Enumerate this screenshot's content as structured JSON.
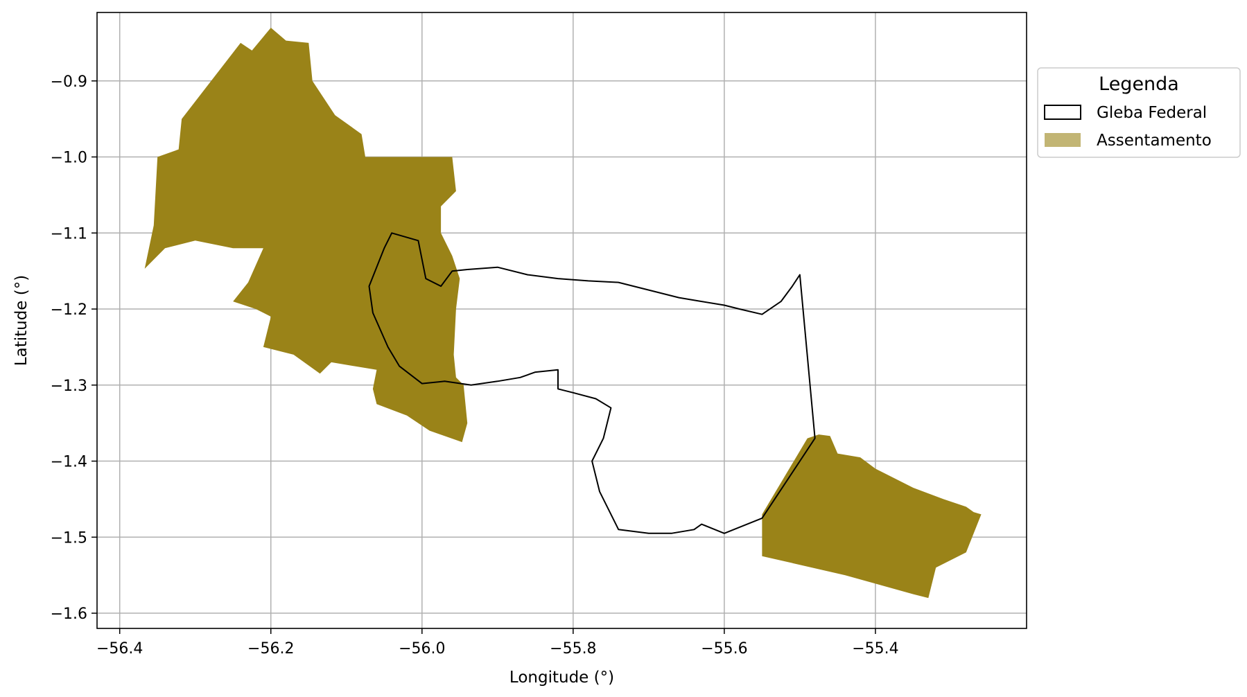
{
  "chart_data": {
    "type": "map",
    "xlabel": "Longitude (°)",
    "ylabel": "Latitude (°)",
    "xlim": [
      -56.43,
      -55.2
    ],
    "ylim": [
      -1.62,
      -0.81
    ],
    "xticks": [
      -56.4,
      -56.2,
      -56.0,
      -55.8,
      -55.6,
      -55.4
    ],
    "xtick_labels": [
      "−56.4",
      "−56.2",
      "−56.0",
      "−55.8",
      "−55.6",
      "−55.4"
    ],
    "yticks": [
      -0.9,
      -1.0,
      -1.1,
      -1.2,
      -1.3,
      -1.4,
      -1.5,
      -1.6
    ],
    "ytick_labels": [
      "−0.9",
      "−1.0",
      "−1.1",
      "−1.2",
      "−1.3",
      "−1.4",
      "−1.5",
      "−1.6"
    ],
    "grid": true,
    "legend": {
      "title": "Legenda",
      "placement": "outside-upper-right",
      "entries": [
        {
          "label": "Gleba Federal",
          "style": "outline",
          "color": "#000000"
        },
        {
          "label": "Assentamento",
          "style": "fill",
          "color": "#9a8318",
          "alpha": 0.6
        }
      ]
    },
    "colors": {
      "assentamento": "#9a8318",
      "gleba": "#000000",
      "grid": "#b0b0b0"
    },
    "layers": [
      {
        "name": "Assentamento",
        "style": "fill",
        "polygons": [
          [
            [
              -56.367,
              -1.147
            ],
            [
              -56.355,
              -1.09
            ],
            [
              -56.35,
              -1.0
            ],
            [
              -56.322,
              -0.99
            ],
            [
              -56.318,
              -0.95
            ],
            [
              -56.24,
              -0.85
            ],
            [
              -56.225,
              -0.86
            ],
            [
              -56.2,
              -0.83
            ],
            [
              -56.18,
              -0.847
            ],
            [
              -56.15,
              -0.85
            ],
            [
              -56.145,
              -0.9
            ],
            [
              -56.115,
              -0.945
            ],
            [
              -56.08,
              -0.97
            ],
            [
              -56.075,
              -1.0
            ],
            [
              -55.96,
              -1.0
            ],
            [
              -55.955,
              -1.045
            ],
            [
              -55.975,
              -1.065
            ],
            [
              -55.975,
              -1.1
            ],
            [
              -55.96,
              -1.13
            ],
            [
              -55.95,
              -1.16
            ],
            [
              -55.955,
              -1.2
            ],
            [
              -55.958,
              -1.26
            ],
            [
              -55.955,
              -1.29
            ],
            [
              -55.945,
              -1.3
            ],
            [
              -55.94,
              -1.35
            ],
            [
              -55.947,
              -1.375
            ],
            [
              -55.99,
              -1.36
            ],
            [
              -56.02,
              -1.34
            ],
            [
              -56.06,
              -1.325
            ],
            [
              -56.065,
              -1.305
            ],
            [
              -56.06,
              -1.28
            ],
            [
              -56.09,
              -1.275
            ],
            [
              -56.12,
              -1.27
            ],
            [
              -56.135,
              -1.285
            ],
            [
              -56.17,
              -1.26
            ],
            [
              -56.21,
              -1.25
            ],
            [
              -56.2,
              -1.21
            ],
            [
              -56.22,
              -1.2
            ],
            [
              -56.25,
              -1.19
            ],
            [
              -56.23,
              -1.165
            ],
            [
              -56.21,
              -1.12
            ],
            [
              -56.25,
              -1.12
            ],
            [
              -56.3,
              -1.11
            ],
            [
              -56.34,
              -1.12
            ],
            [
              -56.367,
              -1.147
            ]
          ],
          [
            [
              -55.55,
              -1.47
            ],
            [
              -55.55,
              -1.525
            ],
            [
              -55.44,
              -1.55
            ],
            [
              -55.35,
              -1.575
            ],
            [
              -55.33,
              -1.58
            ],
            [
              -55.32,
              -1.54
            ],
            [
              -55.28,
              -1.52
            ],
            [
              -55.26,
              -1.47
            ],
            [
              -55.27,
              -1.467
            ],
            [
              -55.28,
              -1.46
            ],
            [
              -55.31,
              -1.45
            ],
            [
              -55.35,
              -1.435
            ],
            [
              -55.4,
              -1.41
            ],
            [
              -55.42,
              -1.395
            ],
            [
              -55.45,
              -1.39
            ],
            [
              -55.46,
              -1.367
            ],
            [
              -55.475,
              -1.365
            ],
            [
              -55.49,
              -1.37
            ],
            [
              -55.55,
              -1.47
            ]
          ]
        ]
      },
      {
        "name": "Gleba Federal",
        "style": "outline",
        "polygons": [
          [
            [
              -56.04,
              -1.1
            ],
            [
              -56.005,
              -1.11
            ],
            [
              -55.995,
              -1.16
            ],
            [
              -55.975,
              -1.17
            ],
            [
              -55.96,
              -1.15
            ],
            [
              -55.94,
              -1.148
            ],
            [
              -55.9,
              -1.145
            ],
            [
              -55.86,
              -1.155
            ],
            [
              -55.82,
              -1.16
            ],
            [
              -55.78,
              -1.163
            ],
            [
              -55.74,
              -1.165
            ],
            [
              -55.7,
              -1.175
            ],
            [
              -55.66,
              -1.185
            ],
            [
              -55.63,
              -1.19
            ],
            [
              -55.6,
              -1.195
            ],
            [
              -55.58,
              -1.2
            ],
            [
              -55.55,
              -1.207
            ],
            [
              -55.525,
              -1.19
            ],
            [
              -55.51,
              -1.17
            ],
            [
              -55.5,
              -1.155
            ],
            [
              -55.48,
              -1.37
            ],
            [
              -55.55,
              -1.475
            ],
            [
              -55.6,
              -1.495
            ],
            [
              -55.63,
              -1.483
            ],
            [
              -55.64,
              -1.49
            ],
            [
              -55.67,
              -1.495
            ],
            [
              -55.7,
              -1.495
            ],
            [
              -55.74,
              -1.49
            ],
            [
              -55.765,
              -1.44
            ],
            [
              -55.775,
              -1.4
            ],
            [
              -55.76,
              -1.37
            ],
            [
              -55.75,
              -1.33
            ],
            [
              -55.77,
              -1.318
            ],
            [
              -55.8,
              -1.31
            ],
            [
              -55.82,
              -1.305
            ],
            [
              -55.82,
              -1.28
            ],
            [
              -55.85,
              -1.283
            ],
            [
              -55.87,
              -1.29
            ],
            [
              -55.9,
              -1.295
            ],
            [
              -55.935,
              -1.3
            ],
            [
              -55.97,
              -1.295
            ],
            [
              -56.0,
              -1.298
            ],
            [
              -56.03,
              -1.275
            ],
            [
              -56.045,
              -1.25
            ],
            [
              -56.065,
              -1.205
            ],
            [
              -56.07,
              -1.17
            ],
            [
              -56.05,
              -1.12
            ],
            [
              -56.04,
              -1.1
            ]
          ]
        ]
      }
    ]
  }
}
